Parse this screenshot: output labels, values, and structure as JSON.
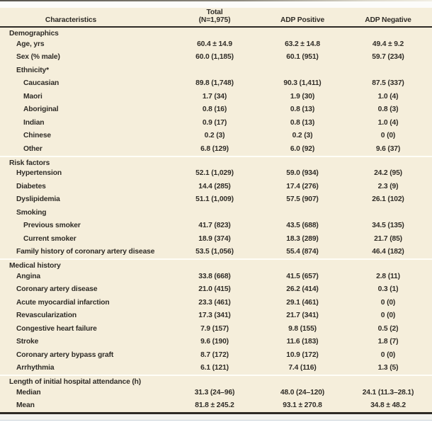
{
  "colors": {
    "table_background": "#f5eedb",
    "rule_dark": "#2e2b26",
    "section_separator": "#fffef7",
    "text": "#2f2c27"
  },
  "header": {
    "characteristics": "Characteristics",
    "total_line1": "Total",
    "total_line2": "(N=1,975)",
    "adp_positive": "ADP Positive",
    "adp_negative": "ADP Negative"
  },
  "sections": [
    {
      "title": "Demographics",
      "rows": [
        {
          "label": "Age, yrs",
          "indent": 1,
          "values": [
            "60.4 ± 14.9",
            "63.2 ± 14.8",
            "49.4 ± 9.2"
          ]
        },
        {
          "label": "Sex (% male)",
          "indent": 1,
          "values": [
            "60.0 (1,185)",
            "60.1 (951)",
            "59.7 (234)"
          ]
        },
        {
          "label": "Ethnicity*",
          "indent": 1,
          "values": [
            "",
            "",
            ""
          ]
        },
        {
          "label": "Caucasian",
          "indent": 2,
          "values": [
            "89.8 (1,748)",
            "90.3 (1,411)",
            "87.5 (337)"
          ]
        },
        {
          "label": "Maori",
          "indent": 2,
          "values": [
            "1.7 (34)",
            "1.9 (30)",
            "1.0 (4)"
          ]
        },
        {
          "label": "Aboriginal",
          "indent": 2,
          "values": [
            "0.8 (16)",
            "0.8 (13)",
            "0.8 (3)"
          ]
        },
        {
          "label": "Indian",
          "indent": 2,
          "values": [
            "0.9 (17)",
            "0.8 (13)",
            "1.0 (4)"
          ]
        },
        {
          "label": "Chinese",
          "indent": 2,
          "values": [
            "0.2 (3)",
            "0.2 (3)",
            "0 (0)"
          ]
        },
        {
          "label": "Other",
          "indent": 2,
          "values": [
            "6.8 (129)",
            "6.0 (92)",
            "9.6 (37)"
          ]
        }
      ]
    },
    {
      "title": "Risk factors",
      "rows": [
        {
          "label": "Hypertension",
          "indent": 1,
          "values": [
            "52.1 (1,029)",
            "59.0 (934)",
            "24.2 (95)"
          ]
        },
        {
          "label": "Diabetes",
          "indent": 1,
          "values": [
            "14.4 (285)",
            "17.4 (276)",
            "2.3 (9)"
          ]
        },
        {
          "label": "Dyslipidemia",
          "indent": 1,
          "values": [
            "51.1 (1,009)",
            "57.5 (907)",
            "26.1 (102)"
          ]
        },
        {
          "label": "Smoking",
          "indent": 1,
          "values": [
            "",
            "",
            ""
          ]
        },
        {
          "label": "Previous smoker",
          "indent": 2,
          "values": [
            "41.7 (823)",
            "43.5 (688)",
            "34.5 (135)"
          ]
        },
        {
          "label": "Current smoker",
          "indent": 2,
          "values": [
            "18.9 (374)",
            "18.3 (289)",
            "21.7 (85)"
          ]
        },
        {
          "label": "Family history of coronary artery disease",
          "indent": 1,
          "values": [
            "53.5 (1,056)",
            "55.4 (874)",
            "46.4 (182)"
          ]
        }
      ]
    },
    {
      "title": "Medical history",
      "rows": [
        {
          "label": "Angina",
          "indent": 1,
          "values": [
            "33.8 (668)",
            "41.5 (657)",
            "2.8 (11)"
          ]
        },
        {
          "label": "Coronary artery disease",
          "indent": 1,
          "values": [
            "21.0 (415)",
            "26.2 (414)",
            "0.3 (1)"
          ]
        },
        {
          "label": "Acute myocardial infarction",
          "indent": 1,
          "values": [
            "23.3 (461)",
            "29.1 (461)",
            "0 (0)"
          ]
        },
        {
          "label": "Revascularization",
          "indent": 1,
          "values": [
            "17.3 (341)",
            "21.7 (341)",
            "0 (0)"
          ]
        },
        {
          "label": "Congestive heart failure",
          "indent": 1,
          "values": [
            "7.9 (157)",
            "9.8 (155)",
            "0.5 (2)"
          ]
        },
        {
          "label": "Stroke",
          "indent": 1,
          "values": [
            "9.6 (190)",
            "11.6 (183)",
            "1.8 (7)"
          ]
        },
        {
          "label": "Coronary artery bypass graft",
          "indent": 1,
          "values": [
            "8.7 (172)",
            "10.9 (172)",
            "0 (0)"
          ]
        },
        {
          "label": "Arrhythmia",
          "indent": 1,
          "values": [
            "6.1 (121)",
            "7.4 (116)",
            "1.3 (5)"
          ]
        }
      ]
    },
    {
      "title": "Length of initial hospital attendance (h)",
      "rows": [
        {
          "label": "Median",
          "indent": 1,
          "values": [
            "31.3 (24–96)",
            "48.0 (24–120)",
            "24.1 (11.3–28.1)"
          ]
        },
        {
          "label": "Mean",
          "indent": 1,
          "values": [
            "81.8 ± 245.2",
            "93.1 ± 270.8",
            "34.8 ± 48.2"
          ]
        }
      ]
    }
  ]
}
